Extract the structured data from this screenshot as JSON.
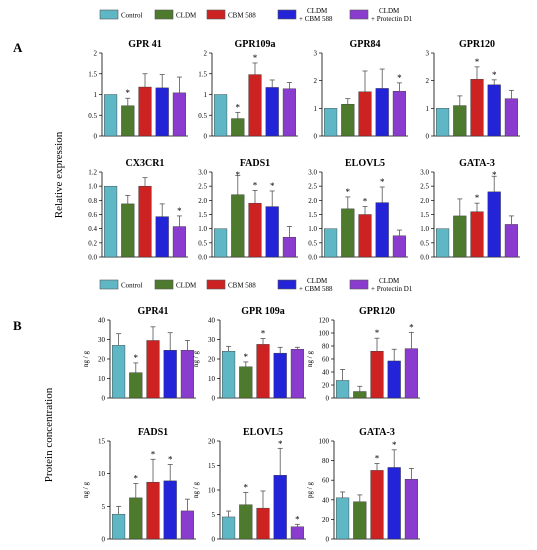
{
  "panel_labels": [
    "A",
    "B"
  ],
  "section_ylabels": [
    "Relative expression",
    "Protein concentration"
  ],
  "legend": {
    "items": [
      {
        "label": [
          "Control"
        ],
        "color": "#5fb7c5"
      },
      {
        "label": [
          "CLDM"
        ],
        "color": "#4e7a2e"
      },
      {
        "label": [
          "CBM 588"
        ],
        "color": "#cc2222"
      },
      {
        "label": [
          "CLDM",
          "+ CBM 588"
        ],
        "color": "#2323d8"
      },
      {
        "label": [
          "CLDM",
          "+ Protectin D1"
        ],
        "color": "#8a3ccf"
      }
    ]
  },
  "chart_data": [
    {
      "type": "bar",
      "section": "A",
      "title": "GPR 41",
      "categories": [
        "Control",
        "CLDM",
        "CBM 588",
        "CLDM + CBM 588",
        "CLDM + Protectin D1"
      ],
      "values": [
        1.0,
        0.73,
        1.18,
        1.16,
        1.04
      ],
      "errors": [
        0.0,
        0.18,
        0.32,
        0.32,
        0.38
      ],
      "sig": [
        false,
        true,
        false,
        false,
        false
      ],
      "ylim": [
        0,
        2
      ],
      "ticks": [
        0,
        0.5,
        1,
        1.5,
        2
      ],
      "tick_labels": [],
      "ylabel": ""
    },
    {
      "type": "bar",
      "section": "A",
      "title": "GPR109a",
      "categories": [
        "Control",
        "CLDM",
        "CBM 588",
        "CLDM + CBM 588",
        "CLDM + Protectin D1"
      ],
      "values": [
        1.0,
        0.42,
        1.48,
        1.17,
        1.14
      ],
      "errors": [
        0.0,
        0.15,
        0.28,
        0.18,
        0.15
      ],
      "sig": [
        false,
        true,
        true,
        false,
        false
      ],
      "ylim": [
        0,
        2
      ],
      "ticks": [
        0,
        0.5,
        1,
        1.5,
        2
      ],
      "tick_labels": [],
      "ylabel": ""
    },
    {
      "type": "bar",
      "section": "A",
      "title": "GPR84",
      "categories": [
        "Control",
        "CLDM",
        "CBM 588",
        "CLDM + CBM 588",
        "CLDM + Protectin D1"
      ],
      "values": [
        1.0,
        1.15,
        1.6,
        1.72,
        1.62
      ],
      "errors": [
        0.0,
        0.2,
        0.75,
        0.7,
        0.3
      ],
      "sig": [
        false,
        false,
        false,
        false,
        true
      ],
      "ylim": [
        0,
        3
      ],
      "ticks": [
        0,
        1,
        2,
        3
      ],
      "tick_labels": [],
      "ylabel": ""
    },
    {
      "type": "bar",
      "section": "A",
      "title": "GPR120",
      "categories": [
        "Control",
        "CLDM",
        "CBM 588",
        "CLDM + CBM 588",
        "CLDM + Protectin D1"
      ],
      "values": [
        1.0,
        1.1,
        2.05,
        1.85,
        1.35
      ],
      "errors": [
        0.0,
        0.35,
        0.45,
        0.18,
        0.3
      ],
      "sig": [
        false,
        false,
        true,
        true,
        false
      ],
      "ylim": [
        0,
        3
      ],
      "ticks": [
        0,
        1,
        2,
        3
      ],
      "tick_labels": [],
      "ylabel": ""
    },
    {
      "type": "bar",
      "section": "A",
      "title": "CX3CR1",
      "categories": [
        "Control",
        "CLDM",
        "CBM 588",
        "CLDM + CBM 588",
        "CLDM + Protectin D1"
      ],
      "values": [
        1.0,
        0.75,
        1.0,
        0.57,
        0.43
      ],
      "errors": [
        0.0,
        0.12,
        0.12,
        0.18,
        0.15
      ],
      "sig": [
        false,
        false,
        false,
        false,
        true
      ],
      "ylim": [
        0,
        1.2
      ],
      "ticks": [
        0,
        0.2,
        0.4,
        0.6,
        0.8,
        1.0,
        1.2
      ],
      "tick_labels": [
        "0.0",
        "0.2",
        "0.4",
        "0.6",
        "0.8",
        "1.0",
        "1.2"
      ],
      "ylabel": ""
    },
    {
      "type": "bar",
      "section": "A",
      "title": "FADS1",
      "categories": [
        "Control",
        "CLDM",
        "CBM 588",
        "CLDM + CBM 588",
        "CLDM + Protectin D1"
      ],
      "values": [
        1.0,
        2.2,
        1.9,
        1.78,
        0.7
      ],
      "errors": [
        0.0,
        0.68,
        0.45,
        0.55,
        0.38
      ],
      "sig": [
        false,
        true,
        true,
        true,
        false
      ],
      "ylim": [
        0,
        3.0
      ],
      "ticks": [
        0,
        0.5,
        1.0,
        1.5,
        2.0,
        2.5,
        3.0
      ],
      "tick_labels": [
        "0.0",
        "0.5",
        "1.0",
        "1.5",
        "2.0",
        "2.5",
        "3.0"
      ],
      "ylabel": ""
    },
    {
      "type": "bar",
      "section": "A",
      "title": "ELOVL5",
      "categories": [
        "Control",
        "CLDM",
        "CBM 588",
        "CLDM + CBM 588",
        "CLDM + Protectin D1"
      ],
      "values": [
        1.0,
        1.7,
        1.5,
        1.92,
        0.75
      ],
      "errors": [
        0.0,
        0.42,
        0.28,
        0.55,
        0.2
      ],
      "sig": [
        false,
        true,
        true,
        true,
        false
      ],
      "ylim": [
        0,
        3.0
      ],
      "ticks": [
        0,
        0.5,
        1.0,
        1.5,
        2.0,
        2.5,
        3.0
      ],
      "tick_labels": [
        "0.0",
        "0.5",
        "1.0",
        "1.5",
        "2.0",
        "2.5",
        "3.0"
      ],
      "ylabel": ""
    },
    {
      "type": "bar",
      "section": "A",
      "title": "GATA-3",
      "categories": [
        "Control",
        "CLDM",
        "CBM 588",
        "CLDM + CBM 588",
        "CLDM + Protectin D1"
      ],
      "values": [
        1.0,
        1.45,
        1.6,
        2.3,
        1.15
      ],
      "errors": [
        0.0,
        0.6,
        0.3,
        0.55,
        0.3
      ],
      "sig": [
        false,
        false,
        true,
        true,
        false
      ],
      "ylim": [
        0,
        3.0
      ],
      "ticks": [
        0,
        0.5,
        1.0,
        1.5,
        2.0,
        2.5,
        3.0
      ],
      "tick_labels": [
        "0.0",
        "0.5",
        "1.0",
        "1.5",
        "2.0",
        "2.5",
        "3.0"
      ],
      "ylabel": ""
    },
    {
      "type": "bar",
      "section": "B",
      "title": "GPR41",
      "categories": [
        "Control",
        "CLDM",
        "CBM 588",
        "CLDM + CBM 588",
        "CLDM + Protectin D1"
      ],
      "values": [
        27,
        13,
        29.5,
        24.5,
        24.5
      ],
      "errors": [
        6,
        5,
        7,
        9,
        5
      ],
      "sig": [
        false,
        true,
        false,
        false,
        false
      ],
      "ylim": [
        0,
        40
      ],
      "ticks": [
        0,
        10,
        20,
        30,
        40
      ],
      "tick_labels": [],
      "ylabel": "ng / g"
    },
    {
      "type": "bar",
      "section": "B",
      "title": "GPR 109a",
      "categories": [
        "Control",
        "CLDM",
        "CBM 588",
        "CLDM + CBM 588",
        "CLDM + Protectin D1"
      ],
      "values": [
        24,
        16,
        27.5,
        23,
        25
      ],
      "errors": [
        2.5,
        2.5,
        3,
        3,
        1
      ],
      "sig": [
        false,
        true,
        true,
        false,
        false
      ],
      "ylim": [
        0,
        40
      ],
      "ticks": [
        0,
        10,
        20,
        30,
        40
      ],
      "tick_labels": [],
      "ylabel": "ng / g"
    },
    {
      "type": "bar",
      "section": "B",
      "title": "GPR120",
      "categories": [
        "Control",
        "CLDM",
        "CBM 588",
        "CLDM + CBM 588",
        "CLDM + Protectin D1"
      ],
      "values": [
        27,
        10,
        72,
        57,
        76
      ],
      "errors": [
        17,
        8,
        20,
        18,
        25
      ],
      "sig": [
        false,
        false,
        true,
        false,
        true
      ],
      "ylim": [
        0,
        120
      ],
      "ticks": [
        0,
        20,
        40,
        60,
        80,
        100,
        120
      ],
      "tick_labels": [],
      "ylabel": "ng / g"
    },
    {
      "type": "bar",
      "section": "B",
      "title": "FADS1",
      "categories": [
        "Control",
        "CLDM",
        "CBM 588",
        "CLDM + CBM 588",
        "CLDM + Protectin D1"
      ],
      "values": [
        3.8,
        6.3,
        8.7,
        8.9,
        4.3
      ],
      "errors": [
        1.2,
        2.2,
        3.5,
        2.5,
        1.8
      ],
      "sig": [
        false,
        true,
        true,
        true,
        false
      ],
      "ylim": [
        0,
        15
      ],
      "ticks": [
        0,
        5,
        10,
        15
      ],
      "tick_labels": [],
      "ylabel": "ng / g"
    },
    {
      "type": "bar",
      "section": "B",
      "title": "ELOVL5",
      "categories": [
        "Control",
        "CLDM",
        "CBM 588",
        "CLDM + CBM 588",
        "CLDM + Protectin D1"
      ],
      "values": [
        4.5,
        7,
        6.3,
        13,
        2.5
      ],
      "errors": [
        1.2,
        2.5,
        3.5,
        5.5,
        0.5
      ],
      "sig": [
        false,
        true,
        false,
        true,
        true
      ],
      "ylim": [
        0,
        20
      ],
      "ticks": [
        0,
        5,
        10,
        15,
        20
      ],
      "tick_labels": [],
      "ylabel": "ng / g"
    },
    {
      "type": "bar",
      "section": "B",
      "title": "GATA-3",
      "categories": [
        "Control",
        "CLDM",
        "CBM 588",
        "CLDM + CBM 588",
        "CLDM + Protectin D1"
      ],
      "values": [
        42,
        38,
        70,
        73,
        61
      ],
      "errors": [
        6,
        7,
        7,
        18,
        11
      ],
      "sig": [
        false,
        false,
        true,
        true,
        false
      ],
      "ylim": [
        0,
        100
      ],
      "ticks": [
        0,
        20,
        40,
        60,
        80,
        100
      ],
      "tick_labels": [],
      "ylabel": "pg / g"
    }
  ]
}
